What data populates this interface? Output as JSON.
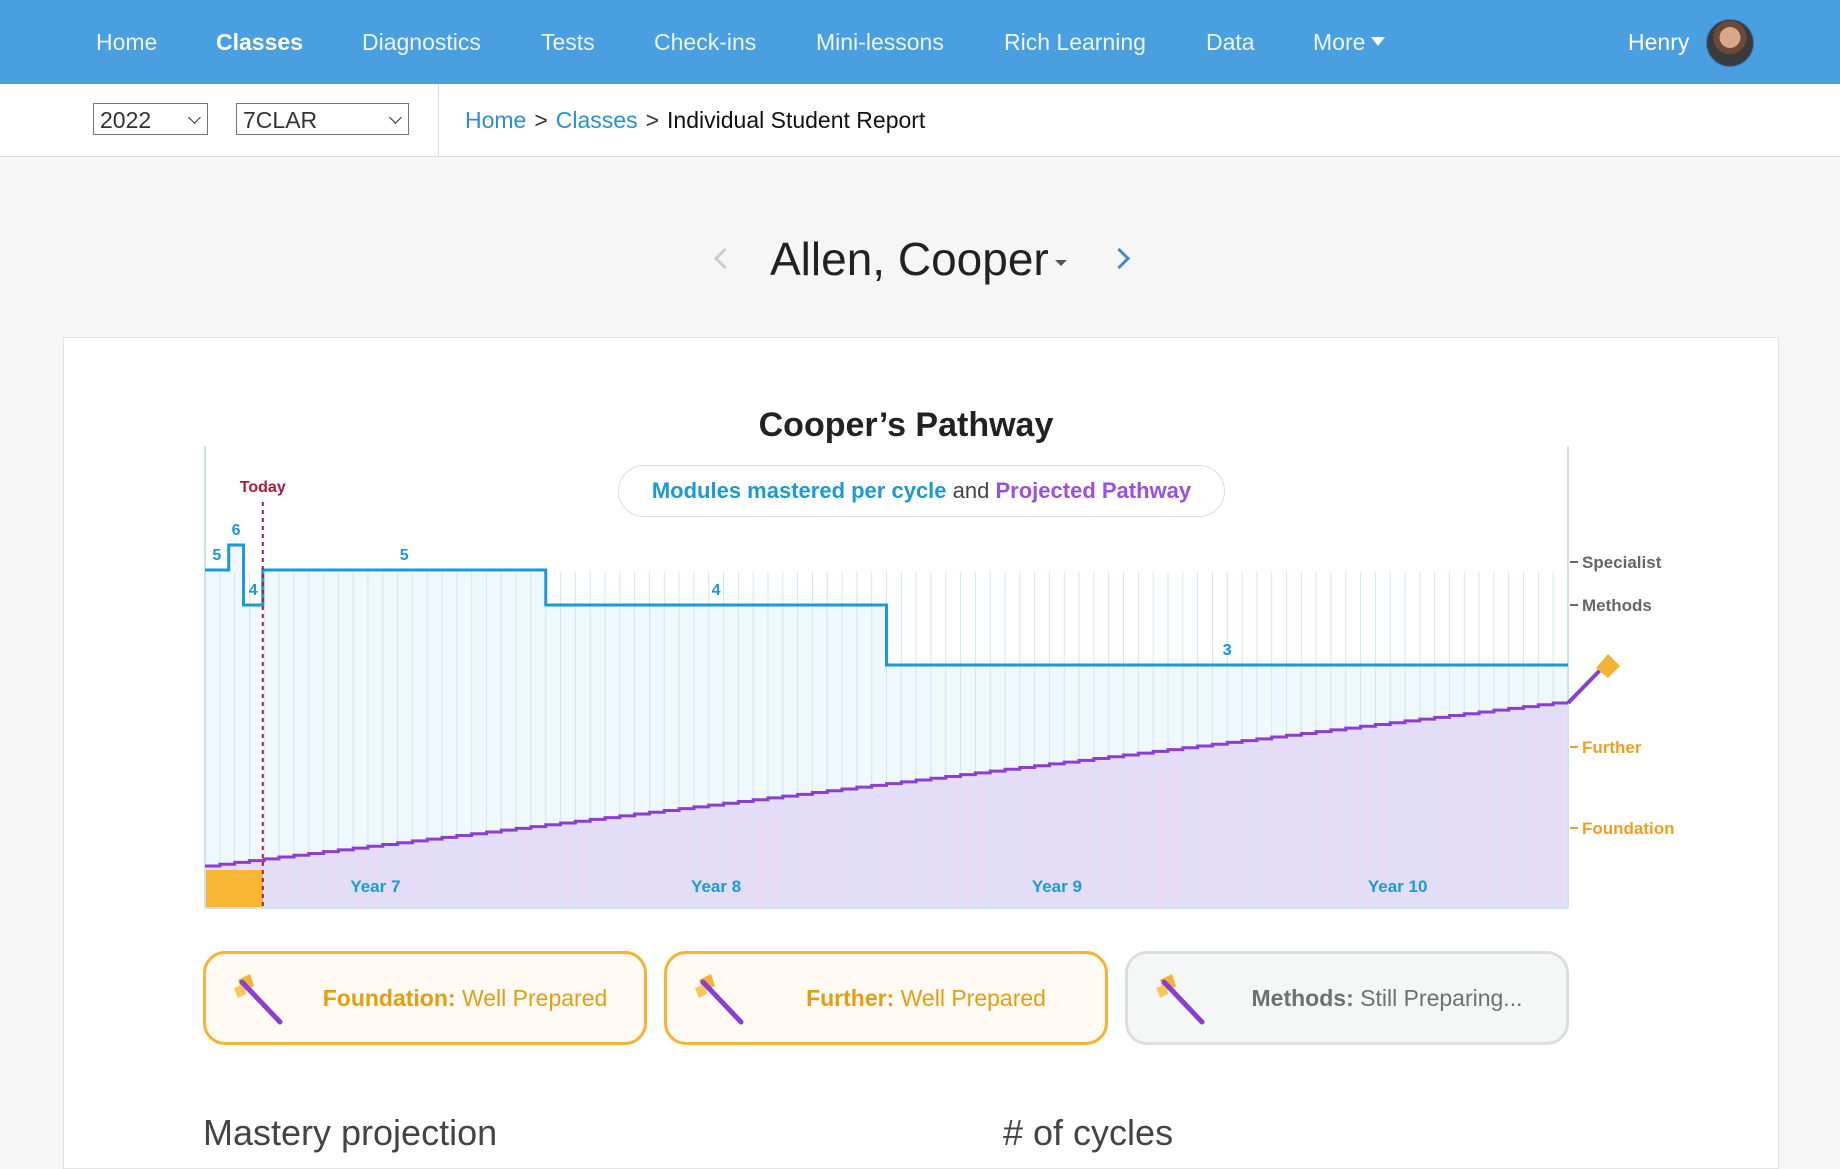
{
  "nav": {
    "items": [
      "Home",
      "Classes",
      "Diagnostics",
      "Tests",
      "Check-ins",
      "Mini-lessons",
      "Rich Learning",
      "Data",
      "More"
    ],
    "active": "Classes",
    "user": "Henry",
    "color": "#4a9fe0"
  },
  "filters": {
    "year": "2022",
    "class": "7CLAR"
  },
  "breadcrumb": {
    "home": "Home",
    "classes": "Classes",
    "current": "Individual Student Report",
    "sep": ">"
  },
  "student": {
    "name": "Allen, Cooper"
  },
  "chart": {
    "title": "Cooper’s Pathway",
    "legend_part1": "Modules mastered per cycle",
    "legend_and": "and",
    "legend_part2": "Projected Pathway"
  },
  "chart_data": {
    "type": "line",
    "series": [
      {
        "name": "Modules mastered per cycle",
        "color": "#1a9ad6",
        "segments": [
          {
            "x": [
              0,
              1.6
            ],
            "value": 5
          },
          {
            "x": [
              1.6,
              2.6
            ],
            "value": 6
          },
          {
            "x": [
              2.6,
              3.9
            ],
            "value": 4
          },
          {
            "x": [
              3.9,
              23
            ],
            "value": 5
          },
          {
            "x": [
              23,
              46
            ],
            "value": 4
          },
          {
            "x": [
              46,
              92
            ],
            "value": 3
          }
        ]
      },
      {
        "name": "Projected Pathway",
        "color": "#8a3fd0",
        "x_range": [
          0,
          92
        ],
        "y_range": [
          0.03,
          0.87
        ]
      }
    ],
    "x_ticks": [
      "Year 7",
      "Year 8",
      "Year 9",
      "Year 10"
    ],
    "right_axis": [
      {
        "label": "Specialist",
        "color": "#666"
      },
      {
        "label": "Methods",
        "color": "#666"
      },
      {
        "label": "Further",
        "color": "#f0a020"
      },
      {
        "label": "Foundation",
        "color": "#f0a020"
      }
    ],
    "today_label": "Today",
    "today_x": 3.9
  },
  "results": [
    {
      "label": "Foundation:",
      "status": "Well Prepared",
      "style": "orange"
    },
    {
      "label": "Further:",
      "status": "Well Prepared",
      "style": "orange"
    },
    {
      "label": "Methods:",
      "status": "Still Preparing...",
      "style": "grey"
    }
  ],
  "sections": {
    "mastery": "Mastery projection",
    "cycles": "# of cycles"
  }
}
